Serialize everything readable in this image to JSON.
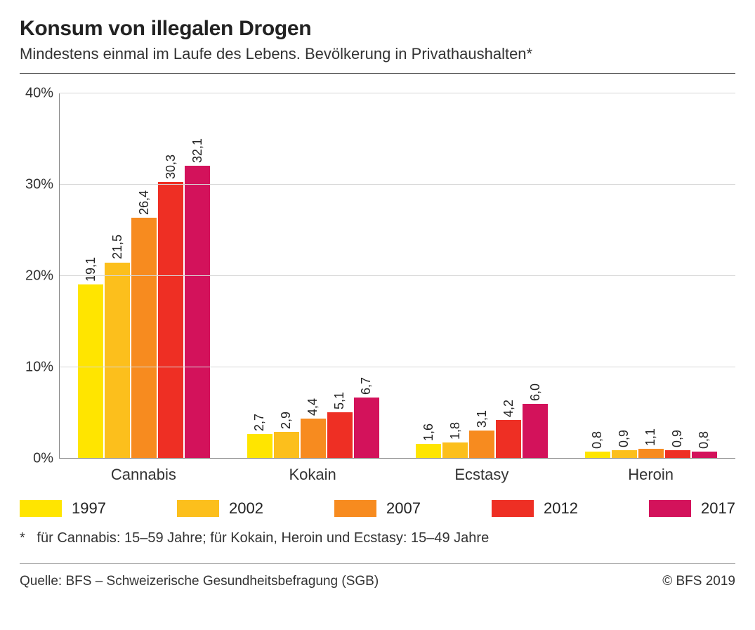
{
  "title": "Konsum von illegalen Drogen",
  "subtitle": "Mindestens einmal im Laufe des Lebens. Bevölkerung in Privathaushalten*",
  "chart": {
    "type": "bar-grouped",
    "ymax": 40,
    "ytick_step": 10,
    "yticks": [
      "0%",
      "10%",
      "20%",
      "30%",
      "40%"
    ],
    "grid_positions_pct": [
      0,
      25,
      50,
      75,
      100
    ],
    "background_color": "#ffffff",
    "grid_color": "#d7d7d7",
    "axis_color": "#888888",
    "categories": [
      "Cannabis",
      "Kokain",
      "Ecstasy",
      "Heroin"
    ],
    "series": [
      {
        "name": "1997",
        "color": "#ffe500"
      },
      {
        "name": "2002",
        "color": "#fcbf1c"
      },
      {
        "name": "2007",
        "color": "#f78b1f"
      },
      {
        "name": "2012",
        "color": "#ee2f24"
      },
      {
        "name": "2017",
        "color": "#d3125b"
      }
    ],
    "values": [
      [
        19.1,
        21.5,
        26.4,
        30.3,
        32.1
      ],
      [
        2.7,
        2.9,
        4.4,
        5.1,
        6.7
      ],
      [
        1.6,
        1.8,
        3.1,
        4.2,
        6.0
      ],
      [
        0.8,
        0.9,
        1.1,
        0.9,
        0.8
      ]
    ],
    "value_labels": [
      [
        "19,1",
        "21,5",
        "26,4",
        "30,3",
        "32,1"
      ],
      [
        "2,7",
        "2,9",
        "4,4",
        "5,1",
        "6,7"
      ],
      [
        "1,6",
        "1,8",
        "3,1",
        "4,2",
        "6,0"
      ],
      [
        "0,8",
        "0,9",
        "1,1",
        "0,9",
        "0,8"
      ]
    ],
    "label_fontsize": 18,
    "axis_fontsize": 20,
    "category_fontsize": 22
  },
  "footnote_marker": "*",
  "footnote": "für Cannabis: 15–59 Jahre; für Kokain, Heroin und Ecstasy: 15–49 Jahre",
  "source_label": "Quelle: BFS – Schweizerische Gesundheitsbefragung (SGB)",
  "copyright": "© BFS 2019"
}
